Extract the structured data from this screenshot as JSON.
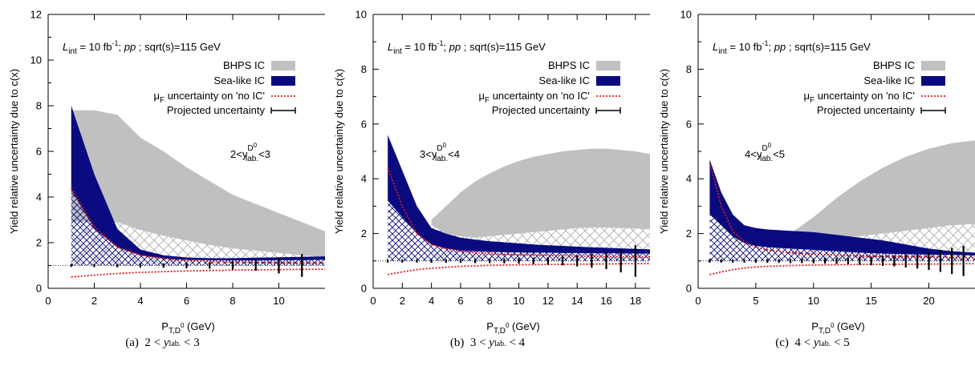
{
  "chart_data": [
    {
      "type": "area",
      "panel_label": "(a)",
      "caption": {
        "lo": "2",
        "var": "y",
        "sub": "lab.",
        "hi": "3"
      },
      "rapidity_label": {
        "lo": "2<y",
        "sup": "D",
        "supsup": "0",
        "sub": "lab.",
        "hi": "<3"
      },
      "header": {
        "L": "L",
        "Lsub": "int",
        "rest1": " = 10 fb",
        "rest1sup": "-1",
        "rest2": ";  ",
        "pp": "pp",
        "rest3": " ; sqrt(s)=115 GeV"
      },
      "xlabel": {
        "main": "P",
        "sub": "T,D",
        "subsup": "0",
        "unit": " (GeV)"
      },
      "ylabel": "Yield relative uncertainty due to c(x)",
      "xlim": [
        0,
        12
      ],
      "ylim": [
        0,
        12
      ],
      "xticks": [
        0,
        2,
        4,
        6,
        8,
        10
      ],
      "yticks": [
        0,
        2,
        4,
        6,
        8,
        10,
        12
      ],
      "legend": {
        "bhps": "BHPS IC",
        "sea": "Sea-like IC",
        "muF_pre": "μ",
        "muF_sub": "F",
        "muF_post": " uncertainty on 'no IC'",
        "proj": "Projected uncertainty"
      },
      "series": {
        "bhps_x": [
          1,
          2,
          3,
          4,
          5,
          6,
          7,
          8,
          9,
          10,
          11,
          12
        ],
        "bhps_upper": [
          7.8,
          7.8,
          7.6,
          6.6,
          6.0,
          5.3,
          4.7,
          4.1,
          3.7,
          3.3,
          2.9,
          2.5
        ],
        "bhps_lower": [
          2.9,
          2.9,
          2.9,
          2.55,
          2.3,
          2.1,
          1.9,
          1.75,
          1.65,
          1.55,
          1.45,
          1.35
        ],
        "sea_x": [
          1,
          2,
          3,
          4,
          5,
          6,
          7,
          8,
          9,
          10,
          11,
          12
        ],
        "sea_upper": [
          8.0,
          5.0,
          2.6,
          1.7,
          1.45,
          1.35,
          1.32,
          1.32,
          1.34,
          1.36,
          1.38,
          1.4
        ],
        "sea_lower": [
          4.3,
          2.6,
          1.8,
          1.45,
          1.3,
          1.25,
          1.23,
          1.22,
          1.22,
          1.23,
          1.24,
          1.25
        ],
        "muF_up_x": [
          1,
          2,
          3,
          4,
          5,
          6,
          7,
          8,
          9,
          10,
          11,
          12
        ],
        "muF_up": [
          4.4,
          2.7,
          1.8,
          1.45,
          1.3,
          1.22,
          1.18,
          1.15,
          1.13,
          1.12,
          1.11,
          1.1
        ],
        "muF_dn_x": [
          1,
          2,
          3,
          4,
          5,
          6,
          7,
          8,
          9,
          10,
          11,
          12
        ],
        "muF_dn": [
          0.5,
          0.58,
          0.65,
          0.7,
          0.73,
          0.76,
          0.78,
          0.8,
          0.81,
          0.82,
          0.83,
          0.84
        ],
        "proj_x": [
          1,
          2,
          3,
          4,
          5,
          6,
          7,
          8,
          9,
          10,
          11
        ],
        "proj_err": [
          0.06,
          0.07,
          0.08,
          0.09,
          0.1,
          0.12,
          0.14,
          0.18,
          0.23,
          0.35,
          0.5
        ],
        "baseline": 1.0
      }
    },
    {
      "type": "area",
      "panel_label": "(b)",
      "caption": {
        "lo": "3",
        "var": "y",
        "sub": "lab.",
        "hi": "4"
      },
      "rapidity_label": {
        "lo": "3<y",
        "sup": "D",
        "supsup": "0",
        "sub": "lab.",
        "hi": "<4"
      },
      "header": {
        "L": "L",
        "Lsub": "int",
        "rest1": " = 10 fb",
        "rest1sup": "-1",
        "rest2": ";  ",
        "pp": "pp",
        "rest3": " ; sqrt(s)=115 GeV"
      },
      "xlabel": {
        "main": "P",
        "sub": "T,D",
        "subsup": "0",
        "unit": " (GeV)"
      },
      "ylabel": "Yield relative uncertainty due to c(x)",
      "xlim": [
        0,
        19
      ],
      "ylim": [
        0,
        10
      ],
      "xticks": [
        0,
        2,
        4,
        6,
        8,
        10,
        12,
        14,
        16,
        18
      ],
      "yticks": [
        0,
        2,
        4,
        6,
        8,
        10
      ],
      "legend": {
        "bhps": "BHPS IC",
        "sea": "Sea-like IC",
        "muF_pre": "μ",
        "muF_sub": "F",
        "muF_post": " uncertainty on 'no IC'",
        "proj": "Projected uncertainty"
      },
      "series": {
        "bhps_x": [
          4,
          5,
          6,
          7,
          8,
          9,
          10,
          11,
          12,
          13,
          14,
          15,
          16,
          17,
          18,
          19
        ],
        "bhps_upper": [
          2.5,
          3.0,
          3.5,
          3.9,
          4.2,
          4.45,
          4.65,
          4.8,
          4.9,
          5.0,
          5.05,
          5.1,
          5.1,
          5.05,
          5.0,
          4.9
        ],
        "bhps_lower": [
          2.3,
          2.0,
          1.9,
          1.85,
          1.9,
          1.95,
          2.0,
          2.05,
          2.1,
          2.15,
          2.2,
          2.22,
          2.22,
          2.2,
          2.18,
          2.15
        ],
        "sea_x": [
          1,
          2,
          3,
          4,
          5,
          6,
          7,
          8,
          9,
          10,
          11,
          12,
          13,
          14,
          15,
          16,
          17,
          18,
          19
        ],
        "sea_upper": [
          5.6,
          4.3,
          3.0,
          2.2,
          2.0,
          1.85,
          1.78,
          1.72,
          1.68,
          1.64,
          1.6,
          1.57,
          1.55,
          1.52,
          1.5,
          1.48,
          1.46,
          1.44,
          1.42
        ],
        "sea_lower": [
          3.2,
          2.6,
          2.0,
          1.6,
          1.45,
          1.38,
          1.35,
          1.33,
          1.32,
          1.31,
          1.3,
          1.3,
          1.29,
          1.29,
          1.28,
          1.28,
          1.28,
          1.27,
          1.27
        ],
        "muF_up_x": [
          1,
          2,
          3,
          4,
          5,
          6,
          7,
          8,
          10,
          12,
          14,
          16,
          18,
          19
        ],
        "muF_up": [
          4.4,
          3.0,
          2.0,
          1.6,
          1.45,
          1.35,
          1.3,
          1.27,
          1.22,
          1.2,
          1.18,
          1.16,
          1.15,
          1.15
        ],
        "muF_dn_x": [
          1,
          2,
          3,
          4,
          5,
          6,
          7,
          8,
          10,
          12,
          14,
          16,
          18,
          19
        ],
        "muF_dn": [
          0.5,
          0.6,
          0.68,
          0.73,
          0.77,
          0.8,
          0.82,
          0.84,
          0.86,
          0.87,
          0.88,
          0.89,
          0.9,
          0.9
        ],
        "proj_x": [
          1,
          2,
          3,
          4,
          5,
          6,
          7,
          8,
          9,
          10,
          11,
          12,
          13,
          14,
          15,
          16,
          17,
          18
        ],
        "proj_err": [
          0.06,
          0.06,
          0.06,
          0.07,
          0.07,
          0.07,
          0.08,
          0.08,
          0.09,
          0.1,
          0.12,
          0.14,
          0.16,
          0.2,
          0.25,
          0.3,
          0.42,
          0.58
        ],
        "baseline": 1.0
      }
    },
    {
      "type": "area",
      "panel_label": "(c)",
      "caption": {
        "lo": "4",
        "var": "y",
        "sub": "lab.",
        "hi": "5"
      },
      "rapidity_label": {
        "lo": "4<y",
        "sup": "D",
        "supsup": "0",
        "sub": "lab.",
        "hi": "<5"
      },
      "header": {
        "L": "L",
        "Lsub": "int",
        "rest1": " = 10 fb",
        "rest1sup": "-1",
        "rest2": ";  ",
        "pp": "pp",
        "rest3": " ; sqrt(s)=115 GeV"
      },
      "xlabel": {
        "main": "P",
        "sub": "T,D",
        "subsup": "0",
        "unit": " (GeV)"
      },
      "ylabel": "Yield relative uncertainty due to c(x)",
      "xlim": [
        0,
        24
      ],
      "ylim": [
        0,
        10
      ],
      "xticks": [
        0,
        5,
        10,
        15,
        20
      ],
      "yticks": [
        0,
        2,
        4,
        6,
        8,
        10
      ],
      "legend": {
        "bhps": "BHPS IC",
        "sea": "Sea-like IC",
        "muF_pre": "μ",
        "muF_sub": "F",
        "muF_post": " uncertainty on 'no IC'",
        "proj": "Projected uncertainty"
      },
      "series": {
        "bhps_x": [
          8,
          10,
          12,
          14,
          16,
          18,
          20,
          22,
          24
        ],
        "bhps_upper": [
          2.0,
          2.6,
          3.3,
          3.9,
          4.4,
          4.8,
          5.1,
          5.3,
          5.4
        ],
        "bhps_lower": [
          1.9,
          1.85,
          1.85,
          1.9,
          2.0,
          2.1,
          2.2,
          2.3,
          2.35
        ],
        "sea_x": [
          1,
          2,
          3,
          4,
          5,
          6,
          8,
          10,
          12,
          14,
          16,
          18,
          20,
          22,
          24
        ],
        "sea_upper": [
          4.7,
          3.5,
          2.7,
          2.3,
          2.2,
          2.15,
          2.1,
          2.05,
          1.95,
          1.85,
          1.75,
          1.6,
          1.45,
          1.35,
          1.3
        ],
        "sea_lower": [
          2.7,
          2.3,
          1.9,
          1.65,
          1.55,
          1.5,
          1.45,
          1.4,
          1.35,
          1.3,
          1.27,
          1.25,
          1.23,
          1.22,
          1.2
        ],
        "muF_up_x": [
          1,
          2,
          3,
          4,
          5,
          6,
          8,
          10,
          14,
          18,
          22,
          24
        ],
        "muF_up": [
          4.6,
          3.0,
          2.1,
          1.7,
          1.5,
          1.4,
          1.3,
          1.25,
          1.18,
          1.15,
          1.13,
          1.12
        ],
        "muF_dn_x": [
          1,
          2,
          3,
          4,
          5,
          6,
          8,
          10,
          14,
          18,
          22,
          24
        ],
        "muF_dn": [
          0.5,
          0.6,
          0.68,
          0.74,
          0.78,
          0.8,
          0.83,
          0.85,
          0.87,
          0.88,
          0.89,
          0.9
        ],
        "proj_x": [
          1,
          2,
          3,
          4,
          5,
          6,
          7,
          8,
          9,
          10,
          11,
          12,
          13,
          14,
          15,
          16,
          17,
          18,
          19,
          20,
          21,
          22,
          23
        ],
        "proj_err": [
          0.06,
          0.06,
          0.06,
          0.06,
          0.07,
          0.07,
          0.07,
          0.08,
          0.08,
          0.09,
          0.1,
          0.11,
          0.12,
          0.14,
          0.16,
          0.18,
          0.2,
          0.24,
          0.28,
          0.33,
          0.4,
          0.48,
          0.55
        ],
        "baseline": 1.0
      }
    }
  ]
}
